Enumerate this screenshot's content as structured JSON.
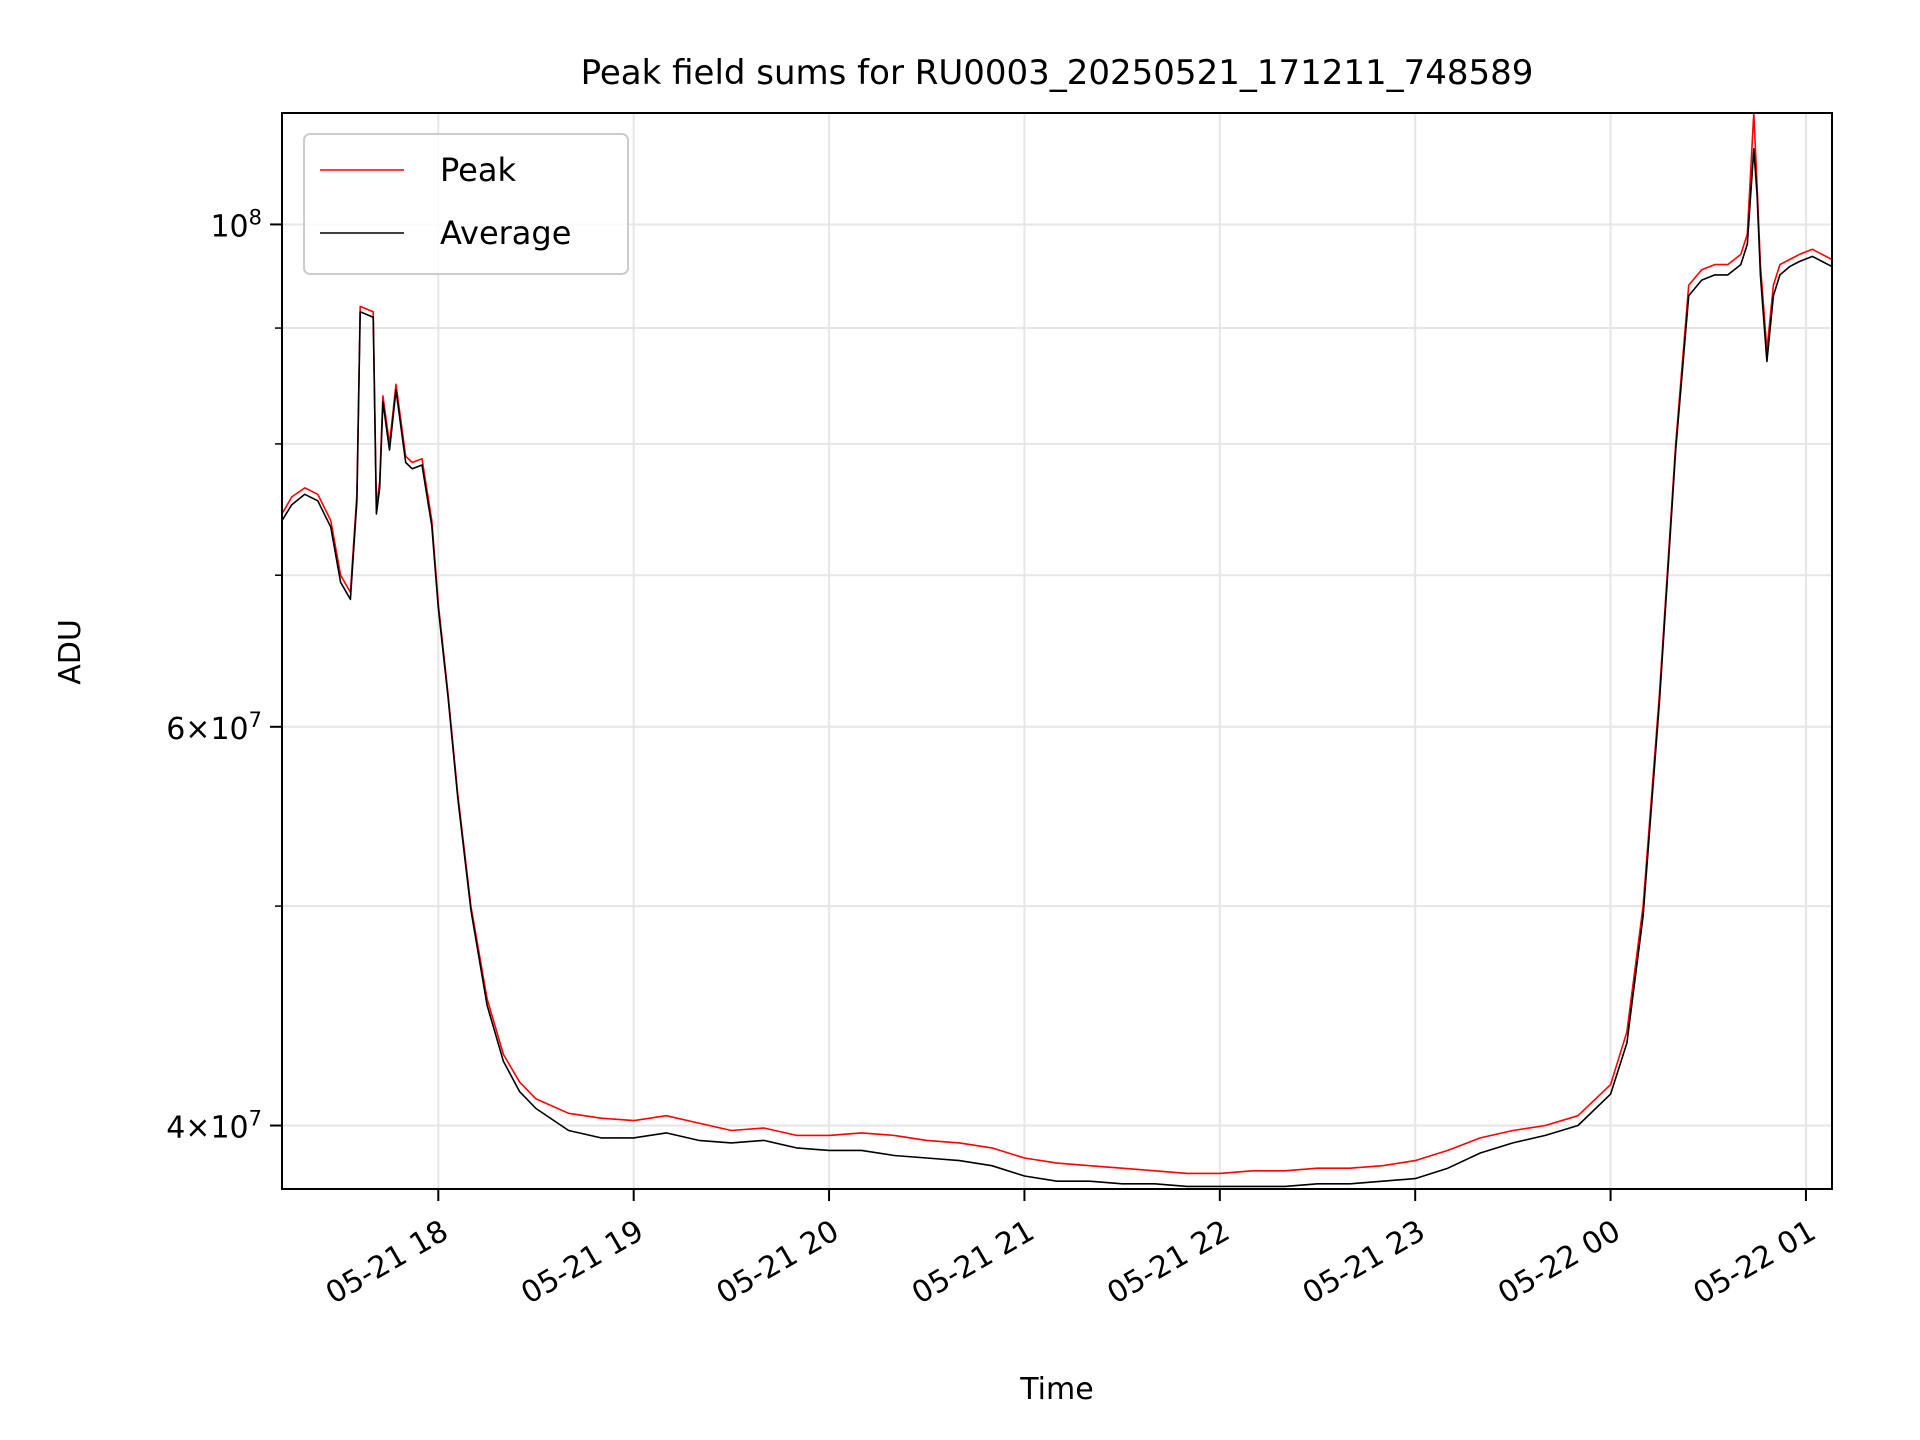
{
  "chart_data": {
    "type": "line",
    "title": "Peak field sums for RU0003_20250521_171211_748589",
    "xlabel": "Time",
    "ylabel": "ADU",
    "yscale": "log",
    "x_range": [
      "05-21 17:12",
      "05-22 01:08"
    ],
    "ylim": [
      37500000,
      112000000
    ],
    "x_ticks": [
      "05-21 18",
      "05-21 19",
      "05-21 20",
      "05-21 21",
      "05-21 22",
      "05-21 23",
      "05-22 00",
      "05-22 01"
    ],
    "y_tick_labels": [
      {
        "value": 40000000,
        "mantissa": "4",
        "exponent": "7"
      },
      {
        "value": 60000000,
        "mantissa": "6",
        "exponent": "7"
      },
      {
        "value": 100000000,
        "mantissa": "",
        "exponent": "8"
      }
    ],
    "y_minor_ticks": [
      50000000,
      70000000,
      80000000,
      90000000
    ],
    "grid": true,
    "legend_position": "top-left",
    "series": [
      {
        "name": "Peak",
        "color": "#ff0000",
        "x": [
          "05-21 17:12",
          "05-21 17:15",
          "05-21 17:19",
          "05-21 17:23",
          "05-21 17:27",
          "05-21 17:30",
          "05-21 17:33",
          "05-21 17:35",
          "05-21 17:36",
          "05-21 17:40",
          "05-21 17:41",
          "05-21 17:42",
          "05-21 17:43",
          "05-21 17:45",
          "05-21 17:47",
          "05-21 17:50",
          "05-21 17:52",
          "05-21 17:55",
          "05-21 17:58",
          "05-21 18:00",
          "05-21 18:03",
          "05-21 18:06",
          "05-21 18:10",
          "05-21 18:15",
          "05-21 18:20",
          "05-21 18:25",
          "05-21 18:30",
          "05-21 18:40",
          "05-21 18:50",
          "05-21 19:00",
          "05-21 19:10",
          "05-21 19:20",
          "05-21 19:30",
          "05-21 19:40",
          "05-21 19:50",
          "05-21 20:00",
          "05-21 20:10",
          "05-21 20:20",
          "05-21 20:30",
          "05-21 20:40",
          "05-21 20:50",
          "05-21 21:00",
          "05-21 21:10",
          "05-21 21:20",
          "05-21 21:30",
          "05-21 21:40",
          "05-21 21:50",
          "05-21 22:00",
          "05-21 22:10",
          "05-21 22:20",
          "05-21 22:30",
          "05-21 22:40",
          "05-21 22:50",
          "05-21 23:00",
          "05-21 23:10",
          "05-21 23:20",
          "05-21 23:30",
          "05-21 23:40",
          "05-21 23:50",
          "05-22 00:00",
          "05-22 00:05",
          "05-22 00:10",
          "05-22 00:15",
          "05-22 00:20",
          "05-22 00:24",
          "05-22 00:28",
          "05-22 00:32",
          "05-22 00:36",
          "05-22 00:40",
          "05-22 00:42",
          "05-22 00:44",
          "05-22 00:45",
          "05-22 00:46",
          "05-22 00:48",
          "05-22 00:50",
          "05-22 00:52",
          "05-22 00:55",
          "05-22 00:58",
          "05-22 01:02",
          "05-22 01:05",
          "05-22 01:08"
        ],
        "y": [
          74500000,
          75800000,
          76500000,
          76000000,
          74000000,
          70000000,
          68800000,
          76000000,
          92000000,
          91500000,
          75000000,
          77000000,
          84000000,
          80000000,
          85000000,
          79000000,
          78500000,
          78800000,
          74000000,
          68000000,
          62000000,
          56000000,
          50000000,
          45500000,
          43000000,
          41800000,
          41100000,
          40500000,
          40300000,
          40200000,
          40400000,
          40100000,
          39800000,
          39900000,
          39600000,
          39600000,
          39700000,
          39600000,
          39400000,
          39300000,
          39100000,
          38700000,
          38500000,
          38400000,
          38300000,
          38200000,
          38100000,
          38100000,
          38200000,
          38200000,
          38300000,
          38300000,
          38400000,
          38600000,
          39000000,
          39500000,
          39800000,
          40000000,
          40400000,
          41700000,
          44000000,
          50000000,
          62000000,
          80000000,
          94000000,
          95500000,
          96000000,
          96000000,
          97000000,
          99000000,
          112000000,
          104000000,
          96000000,
          88000000,
          94000000,
          96000000,
          96500000,
          97000000,
          97500000,
          97000000,
          96500000
        ]
      },
      {
        "name": "Average",
        "color": "#000000",
        "x": [
          "05-21 17:12",
          "05-21 17:15",
          "05-21 17:19",
          "05-21 17:23",
          "05-21 17:27",
          "05-21 17:30",
          "05-21 17:33",
          "05-21 17:35",
          "05-21 17:36",
          "05-21 17:40",
          "05-21 17:41",
          "05-21 17:42",
          "05-21 17:43",
          "05-21 17:45",
          "05-21 17:47",
          "05-21 17:50",
          "05-21 17:52",
          "05-21 17:55",
          "05-21 17:58",
          "05-21 18:00",
          "05-21 18:03",
          "05-21 18:06",
          "05-21 18:10",
          "05-21 18:15",
          "05-21 18:20",
          "05-21 18:25",
          "05-21 18:30",
          "05-21 18:40",
          "05-21 18:50",
          "05-21 19:00",
          "05-21 19:10",
          "05-21 19:20",
          "05-21 19:30",
          "05-21 19:40",
          "05-21 19:50",
          "05-21 20:00",
          "05-21 20:10",
          "05-21 20:20",
          "05-21 20:30",
          "05-21 20:40",
          "05-21 20:50",
          "05-21 21:00",
          "05-21 21:10",
          "05-21 21:20",
          "05-21 21:30",
          "05-21 21:40",
          "05-21 21:50",
          "05-21 22:00",
          "05-21 22:10",
          "05-21 22:20",
          "05-21 22:30",
          "05-21 22:40",
          "05-21 22:50",
          "05-21 23:00",
          "05-21 23:10",
          "05-21 23:20",
          "05-21 23:30",
          "05-21 23:40",
          "05-21 23:50",
          "05-22 00:00",
          "05-22 00:05",
          "05-22 00:10",
          "05-22 00:15",
          "05-22 00:20",
          "05-22 00:24",
          "05-22 00:28",
          "05-22 00:32",
          "05-22 00:36",
          "05-22 00:40",
          "05-22 00:42",
          "05-22 00:44",
          "05-22 00:45",
          "05-22 00:46",
          "05-22 00:48",
          "05-22 00:50",
          "05-22 00:52",
          "05-22 00:55",
          "05-22 00:58",
          "05-22 01:02",
          "05-22 01:05",
          "05-22 01:08"
        ],
        "y": [
          74000000,
          75200000,
          76000000,
          75500000,
          73500000,
          69500000,
          68300000,
          75500000,
          91500000,
          91000000,
          74500000,
          76500000,
          83500000,
          79500000,
          84500000,
          78500000,
          78000000,
          78300000,
          73600000,
          67700000,
          61800000,
          55800000,
          49800000,
          45200000,
          42700000,
          41400000,
          40700000,
          39800000,
          39500000,
          39500000,
          39700000,
          39400000,
          39300000,
          39400000,
          39100000,
          39000000,
          39000000,
          38800000,
          38700000,
          38600000,
          38400000,
          38000000,
          37800000,
          37800000,
          37700000,
          37700000,
          37600000,
          37600000,
          37600000,
          37600000,
          37700000,
          37700000,
          37800000,
          37900000,
          38300000,
          38900000,
          39300000,
          39600000,
          40000000,
          41300000,
          43500000,
          49500000,
          61500000,
          79500000,
          93000000,
          94500000,
          95000000,
          95000000,
          96000000,
          98000000,
          108000000,
          103000000,
          95000000,
          87000000,
          93000000,
          95000000,
          95800000,
          96300000,
          96800000,
          96300000,
          95800000
        ]
      }
    ]
  }
}
